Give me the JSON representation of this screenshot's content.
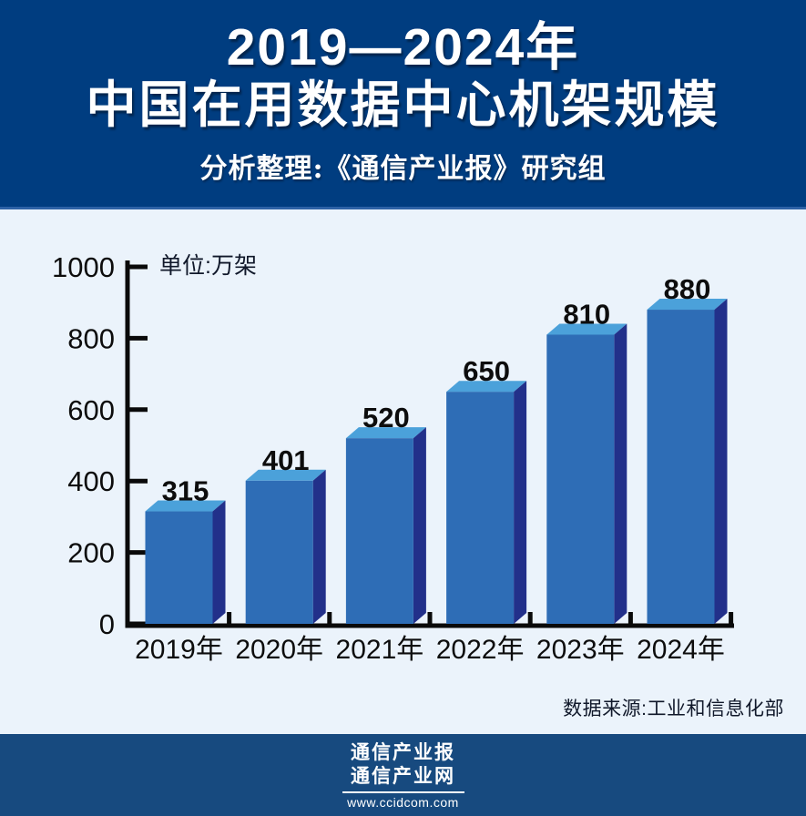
{
  "colors": {
    "page_bg": "#ebf3fb",
    "header_bg": "#003d80",
    "footer_bg": "#174a7f"
  },
  "header": {
    "title_line1": "2019—2024年",
    "title_line2": "中国在用数据中心机架规模",
    "subtitle": "分析整理:《通信产业报》研究组"
  },
  "chart_data": {
    "type": "bar",
    "title": "2019—2024年中国在用数据中心机架规模",
    "unit_label": "单位:万架",
    "categories": [
      "2019年",
      "2020年",
      "2021年",
      "2022年",
      "2023年",
      "2024年"
    ],
    "values": [
      315,
      401,
      520,
      650,
      810,
      880
    ],
    "xlabel": "",
    "ylabel": "万架",
    "ylim": [
      0,
      1000
    ],
    "yticks": [
      0,
      200,
      400,
      600,
      800,
      1000
    ],
    "grid": false,
    "legend": "none",
    "style": "3d-bars",
    "bar_front_color": "#2e6db6",
    "bar_top_color": "#4ba1da",
    "bar_side_color": "#22308a",
    "axis_color": "#0a0a0a",
    "label_color": "#0d0d0d"
  },
  "source": {
    "text": "数据来源:工业和信息化部"
  },
  "footer": {
    "logo_line1": "通信产业报",
    "logo_line2": "通信产业网",
    "logo_url": "www.ccidcom.com"
  }
}
